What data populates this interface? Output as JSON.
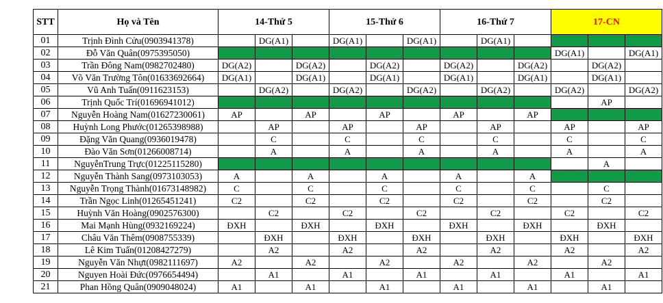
{
  "header": {
    "stt": "STT",
    "name": "Họ và Tên",
    "days": [
      {
        "label": "14-Thứ 5",
        "highlight": false
      },
      {
        "label": "15-Thứ 6",
        "highlight": false
      },
      {
        "label": "16-Thứ 7",
        "highlight": false
      },
      {
        "label": "17-CN",
        "highlight": true
      }
    ]
  },
  "colors": {
    "highlight_bg": "#ffff00",
    "highlight_text": "#ff0000",
    "green": "#119a48"
  },
  "rows": [
    {
      "stt": "01",
      "name": "Trịnh Đình Cửu(0903941378)",
      "cells": [
        "",
        "DG(A1)",
        "",
        "DG(A1)",
        "",
        "DG(A1)",
        "",
        "DG(A1)",
        "",
        "G",
        "G",
        "G"
      ]
    },
    {
      "stt": "02",
      "name": "Đỗ Văn Quân(0975395050)",
      "cells": [
        "G",
        "G",
        "G",
        "G",
        "G",
        "G",
        "G",
        "G",
        "G",
        "DG(A1)",
        "",
        "DG(A1)"
      ]
    },
    {
      "stt": "03",
      "name": "Trần Đông Nam(0982702480)",
      "cells": [
        "DG(A2)",
        "",
        "DG(A2)",
        "",
        "DG(A2)",
        "",
        "DG(A2)",
        "",
        "DG(A2)",
        "",
        "DG(A2)",
        ""
      ]
    },
    {
      "stt": "04",
      "name": "Võ Văn Trường Tôn(01633692664)",
      "cells": [
        "DG(A1)",
        "",
        "DG(A1)",
        "",
        "DG(A1)",
        "",
        "DG(A1)",
        "",
        "DG(A1)",
        "",
        "DG(A1)",
        ""
      ]
    },
    {
      "stt": "05",
      "name": "Vũ Anh Tuấn(0911623153)",
      "cells": [
        "",
        "DG(A2)",
        "",
        "DG(A2)",
        "",
        "DG(A2)",
        "",
        "DG(A2)",
        "",
        "DG(A2)",
        "",
        "DG(A2)"
      ]
    },
    {
      "stt": "06",
      "name": "Trịnh Quốc Trí(01696941012)",
      "cells": [
        "G",
        "G",
        "G",
        "G",
        "G",
        "G",
        "G",
        "G",
        "G",
        "",
        "AP",
        ""
      ]
    },
    {
      "stt": "07",
      "name": "Nguyễn Hoàng Nam(01627230061)",
      "cells": [
        "AP",
        "",
        "AP",
        "",
        "AP",
        "",
        "AP",
        "",
        "AP",
        "G",
        "G",
        "G"
      ]
    },
    {
      "stt": "08",
      "name": "Huỳnh Long Phước(01265398988)",
      "cells": [
        "",
        "AP",
        "",
        "AP",
        "",
        "AP",
        "",
        "AP",
        "",
        "AP",
        "",
        "AP"
      ]
    },
    {
      "stt": "09",
      "name": "Đặng Văn Quang(0936019478)",
      "cells": [
        "",
        "C",
        "",
        "C",
        "",
        "C",
        "",
        "C",
        "",
        "C",
        "",
        "C"
      ]
    },
    {
      "stt": "10",
      "name": "Đào Văn Sơn(01266008714)",
      "cells": [
        "",
        "A",
        "",
        "A",
        "",
        "A",
        "",
        "A",
        "",
        "A",
        "",
        "A"
      ]
    },
    {
      "stt": "11",
      "name": "NguyễnTrung Trực(01225115280)",
      "cells": [
        "G",
        "G",
        "G",
        "G",
        "G",
        "G",
        "G",
        "G",
        "G",
        "",
        "A",
        ""
      ]
    },
    {
      "stt": "12",
      "name": "Nguyễn Thành Sang(0973103053)",
      "cells": [
        "A",
        "",
        "A",
        "",
        "A",
        "",
        "A",
        "",
        "A",
        "G",
        "G",
        "G"
      ]
    },
    {
      "stt": "13",
      "name": "Nguyễn Trọng Thành(01673148982)",
      "cells": [
        "C",
        "",
        "C",
        "",
        "C",
        "",
        "C",
        "",
        "C",
        "",
        "C",
        ""
      ]
    },
    {
      "stt": "14",
      "name": "Trần Ngọc Linh(01265451241)",
      "cells": [
        "C2",
        "",
        "C2",
        "",
        "C2",
        "",
        "C2",
        "",
        "C2",
        "",
        "C2",
        ""
      ]
    },
    {
      "stt": "15",
      "name": "Huỳnh Văn Hoàng(0902576300)",
      "cells": [
        "",
        "C2",
        "",
        "C2",
        "",
        "C2",
        "",
        "C2",
        "",
        "C2",
        "",
        "C2"
      ]
    },
    {
      "stt": "16",
      "name": "Mai Mạnh Hùng(0932169224)",
      "cells": [
        "ĐXH",
        "",
        "ĐXH",
        "",
        "ĐXH",
        "",
        "ĐXH",
        "",
        "ĐXH",
        "",
        "ĐXH",
        ""
      ]
    },
    {
      "stt": "17",
      "name": "Châu Văn Thêm(0908755339)",
      "cells": [
        "",
        "ĐXH",
        "",
        "ĐXH",
        "",
        "ĐXH",
        "",
        "ĐXH",
        "",
        "ĐXH",
        "",
        "ĐXH"
      ]
    },
    {
      "stt": "18",
      "name": "Lê Kim Tuấn(01208427279)",
      "cells": [
        "",
        "A2",
        "",
        "A2",
        "",
        "A2",
        "",
        "A2",
        "",
        "A2",
        "",
        "A2"
      ]
    },
    {
      "stt": "19",
      "name": "Nguyễn Văn Nhựt(0982111697)",
      "cells": [
        "A2",
        "",
        "A2",
        "",
        "A2",
        "",
        "A2",
        "",
        "A2",
        "",
        "A2",
        ""
      ]
    },
    {
      "stt": "20",
      "name": "Nguyen Hoài Đức(0976654494)",
      "cells": [
        "",
        "A1",
        "",
        "A1",
        "",
        "A1",
        "",
        "A1",
        "",
        "A1",
        "",
        "A1"
      ]
    },
    {
      "stt": "21",
      "name": "Phan Hồng Quân(0909048024)",
      "cells": [
        "A1",
        "",
        "A1",
        "",
        "A1",
        "",
        "A1",
        "",
        "A1",
        "",
        "A1",
        ""
      ]
    }
  ]
}
